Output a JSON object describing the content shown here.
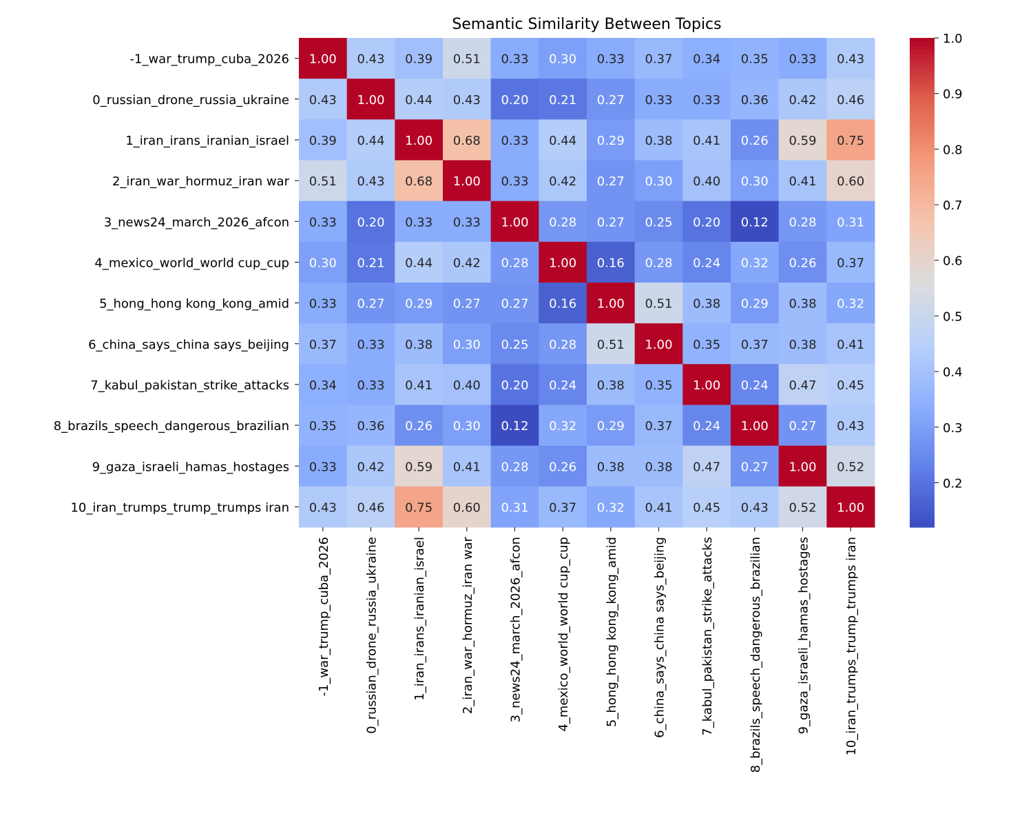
{
  "chart_data": {
    "type": "heatmap",
    "title": "Semantic Similarity Between Topics",
    "xlabel": "",
    "ylabel": "",
    "labels": [
      "-1_war_trump_cuba_2026",
      "0_russian_drone_russia_ukraine",
      "1_iran_irans_iranian_israel",
      "2_iran_war_hormuz_iran war",
      "3_news24_march_2026_afcon",
      "4_mexico_world_world cup_cup",
      "5_hong_hong kong_kong_amid",
      "6_china_says_china says_beijing",
      "7_kabul_pakistan_strike_attacks",
      "8_brazils_speech_dangerous_brazilian",
      "9_gaza_israeli_hamas_hostages",
      "10_iran_trumps_trump_trumps iran"
    ],
    "values": [
      [
        1.0,
        0.43,
        0.39,
        0.51,
        0.33,
        0.3,
        0.33,
        0.37,
        0.34,
        0.35,
        0.33,
        0.43
      ],
      [
        0.43,
        1.0,
        0.44,
        0.43,
        0.2,
        0.21,
        0.27,
        0.33,
        0.33,
        0.36,
        0.42,
        0.46
      ],
      [
        0.39,
        0.44,
        1.0,
        0.68,
        0.33,
        0.44,
        0.29,
        0.38,
        0.41,
        0.26,
        0.59,
        0.75
      ],
      [
        0.51,
        0.43,
        0.68,
        1.0,
        0.33,
        0.42,
        0.27,
        0.3,
        0.4,
        0.3,
        0.41,
        0.6
      ],
      [
        0.33,
        0.2,
        0.33,
        0.33,
        1.0,
        0.28,
        0.27,
        0.25,
        0.2,
        0.12,
        0.28,
        0.31
      ],
      [
        0.3,
        0.21,
        0.44,
        0.42,
        0.28,
        1.0,
        0.16,
        0.28,
        0.24,
        0.32,
        0.26,
        0.37
      ],
      [
        0.33,
        0.27,
        0.29,
        0.27,
        0.27,
        0.16,
        1.0,
        0.51,
        0.38,
        0.29,
        0.38,
        0.32
      ],
      [
        0.37,
        0.33,
        0.38,
        0.3,
        0.25,
        0.28,
        0.51,
        1.0,
        0.35,
        0.37,
        0.38,
        0.41
      ],
      [
        0.34,
        0.33,
        0.41,
        0.4,
        0.2,
        0.24,
        0.38,
        0.35,
        1.0,
        0.24,
        0.47,
        0.45
      ],
      [
        0.35,
        0.36,
        0.26,
        0.3,
        0.12,
        0.32,
        0.29,
        0.37,
        0.24,
        1.0,
        0.27,
        0.43
      ],
      [
        0.33,
        0.42,
        0.59,
        0.41,
        0.28,
        0.26,
        0.38,
        0.38,
        0.47,
        0.27,
        1.0,
        0.52
      ],
      [
        0.43,
        0.46,
        0.75,
        0.6,
        0.31,
        0.37,
        0.32,
        0.41,
        0.45,
        0.43,
        0.52,
        1.0
      ]
    ],
    "colormap": "coolwarm",
    "value_range": [
      0.12,
      1.0
    ],
    "colorbar_ticks": [
      "0.2",
      "0.3",
      "0.4",
      "0.5",
      "0.6",
      "0.7",
      "0.8",
      "0.9",
      "1.0"
    ],
    "annotations": true,
    "annotation_format": "0.00",
    "colorbar_position": "right"
  }
}
